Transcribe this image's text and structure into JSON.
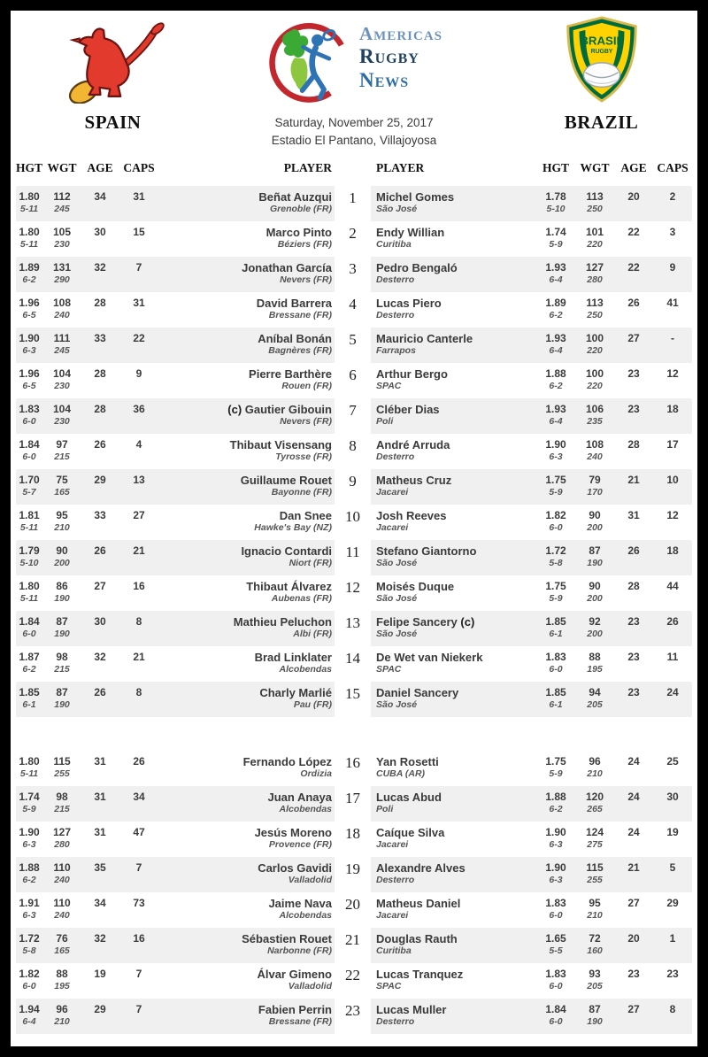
{
  "page": {
    "date": "Saturday, November 25, 2017",
    "venue": "Estadio El Pantano, Villajoyosa"
  },
  "logos": {
    "arn": {
      "word1": "Americas",
      "word2": "Rugby",
      "word3": "News"
    },
    "brazil_badge": {
      "title": "BRASIL",
      "subtitle": "RUGBY"
    },
    "spain_icon": "red-lion-with-rugby-ball",
    "arn_icon": "americas-map-rugby-kicker-red-crescent",
    "brazil_icon": "yellow-green-shield-rugby-ball"
  },
  "captain_marker": "(c)",
  "left_team": {
    "name": "SPAIN",
    "headers": {
      "hgt": "HGT",
      "wgt": "WGT",
      "age": "AGE",
      "caps": "CAPS",
      "player": "PLAYER"
    }
  },
  "right_team": {
    "name": "BRAZIL",
    "headers": {
      "player": "PLAYER",
      "hgt": "HGT",
      "wgt": "WGT",
      "age": "AGE",
      "caps": "CAPS"
    }
  },
  "players": [
    {
      "num": "1",
      "left": {
        "hgt": "1.80",
        "hgt2": "5-11",
        "wgt": "112",
        "wgt2": "245",
        "age": "34",
        "caps": "31",
        "name": "Beñat Auzqui",
        "club": "Grenoble (FR)"
      },
      "right": {
        "name": "Michel Gomes",
        "club": "São José",
        "hgt": "1.78",
        "hgt2": "5-10",
        "wgt": "113",
        "wgt2": "250",
        "age": "20",
        "caps": "2"
      }
    },
    {
      "num": "2",
      "left": {
        "hgt": "1.80",
        "hgt2": "5-11",
        "wgt": "105",
        "wgt2": "230",
        "age": "30",
        "caps": "15",
        "name": "Marco Pinto",
        "club": "Béziers (FR)"
      },
      "right": {
        "name": "Endy Willian",
        "club": "Curitiba",
        "hgt": "1.74",
        "hgt2": "5-9",
        "wgt": "101",
        "wgt2": "220",
        "age": "22",
        "caps": "3"
      }
    },
    {
      "num": "3",
      "left": {
        "hgt": "1.89",
        "hgt2": "6-2",
        "wgt": "131",
        "wgt2": "290",
        "age": "32",
        "caps": "7",
        "name": "Jonathan García",
        "club": "Nevers (FR)"
      },
      "right": {
        "name": "Pedro Bengaló",
        "club": "Desterro",
        "hgt": "1.93",
        "hgt2": "6-4",
        "wgt": "127",
        "wgt2": "280",
        "age": "22",
        "caps": "9"
      }
    },
    {
      "num": "4",
      "left": {
        "hgt": "1.96",
        "hgt2": "6-5",
        "wgt": "108",
        "wgt2": "240",
        "age": "28",
        "caps": "31",
        "name": "David Barrera",
        "club": "Bressane (FR)"
      },
      "right": {
        "name": "Lucas Piero",
        "club": "Desterro",
        "hgt": "1.89",
        "hgt2": "6-2",
        "wgt": "113",
        "wgt2": "250",
        "age": "26",
        "caps": "41"
      }
    },
    {
      "num": "5",
      "left": {
        "hgt": "1.90",
        "hgt2": "6-3",
        "wgt": "111",
        "wgt2": "245",
        "age": "33",
        "caps": "22",
        "name": "Aníbal Bonán",
        "club": "Bagnères (FR)"
      },
      "right": {
        "name": "Mauricio Canterle",
        "club": "Farrapos",
        "hgt": "1.93",
        "hgt2": "6-4",
        "wgt": "100",
        "wgt2": "220",
        "age": "27",
        "caps": "-"
      }
    },
    {
      "num": "6",
      "left": {
        "hgt": "1.96",
        "hgt2": "6-5",
        "wgt": "104",
        "wgt2": "230",
        "age": "28",
        "caps": "9",
        "name": "Pierre Barthère",
        "club": "Rouen (FR)"
      },
      "right": {
        "name": "Arthur Bergo",
        "club": "SPAC",
        "hgt": "1.88",
        "hgt2": "6-2",
        "wgt": "100",
        "wgt2": "220",
        "age": "23",
        "caps": "12"
      }
    },
    {
      "num": "7",
      "left": {
        "hgt": "1.83",
        "hgt2": "6-0",
        "wgt": "104",
        "wgt2": "230",
        "age": "28",
        "caps": "36",
        "name": "Gautier Gibouin",
        "club": "Nevers (FR)",
        "captain": true
      },
      "right": {
        "name": "Cléber Dias",
        "club": "Poli",
        "hgt": "1.93",
        "hgt2": "6-4",
        "wgt": "106",
        "wgt2": "235",
        "age": "23",
        "caps": "18"
      }
    },
    {
      "num": "8",
      "left": {
        "hgt": "1.84",
        "hgt2": "6-0",
        "wgt": "97",
        "wgt2": "215",
        "age": "26",
        "caps": "4",
        "name": "Thibaut Visensang",
        "club": "Tyrosse (FR)"
      },
      "right": {
        "name": "André Arruda",
        "club": "Desterro",
        "hgt": "1.90",
        "hgt2": "6-3",
        "wgt": "108",
        "wgt2": "240",
        "age": "28",
        "caps": "17"
      }
    },
    {
      "num": "9",
      "left": {
        "hgt": "1.70",
        "hgt2": "5-7",
        "wgt": "75",
        "wgt2": "165",
        "age": "29",
        "caps": "13",
        "name": "Guillaume Rouet",
        "club": "Bayonne (FR)"
      },
      "right": {
        "name": "Matheus Cruz",
        "club": "Jacarei",
        "hgt": "1.75",
        "hgt2": "5-9",
        "wgt": "79",
        "wgt2": "170",
        "age": "21",
        "caps": "10"
      }
    },
    {
      "num": "10",
      "left": {
        "hgt": "1.81",
        "hgt2": "5-11",
        "wgt": "95",
        "wgt2": "210",
        "age": "33",
        "caps": "27",
        "name": "Dan Snee",
        "club": "Hawke's Bay (NZ)"
      },
      "right": {
        "name": "Josh Reeves",
        "club": "Jacarei",
        "hgt": "1.82",
        "hgt2": "6-0",
        "wgt": "90",
        "wgt2": "200",
        "age": "31",
        "caps": "12"
      }
    },
    {
      "num": "11",
      "left": {
        "hgt": "1.79",
        "hgt2": "5-10",
        "wgt": "90",
        "wgt2": "200",
        "age": "26",
        "caps": "21",
        "name": "Ignacio Contardi",
        "club": "Niort (FR)"
      },
      "right": {
        "name": "Stefano Giantorno",
        "club": "São José",
        "hgt": "1.72",
        "hgt2": "5-8",
        "wgt": "87",
        "wgt2": "190",
        "age": "26",
        "caps": "18"
      }
    },
    {
      "num": "12",
      "left": {
        "hgt": "1.80",
        "hgt2": "5-11",
        "wgt": "86",
        "wgt2": "190",
        "age": "27",
        "caps": "16",
        "name": "Thibaut Álvarez",
        "club": "Aubenas (FR)"
      },
      "right": {
        "name": "Moisés Duque",
        "club": "São José",
        "hgt": "1.75",
        "hgt2": "5-9",
        "wgt": "90",
        "wgt2": "200",
        "age": "28",
        "caps": "44"
      }
    },
    {
      "num": "13",
      "left": {
        "hgt": "1.84",
        "hgt2": "6-0",
        "wgt": "87",
        "wgt2": "190",
        "age": "30",
        "caps": "8",
        "name": "Mathieu Peluchon",
        "club": "Albi (FR)"
      },
      "right": {
        "name": "Felipe Sancery",
        "club": "São José",
        "hgt": "1.85",
        "hgt2": "6-1",
        "wgt": "92",
        "wgt2": "200",
        "age": "23",
        "caps": "26",
        "captain": true
      }
    },
    {
      "num": "14",
      "left": {
        "hgt": "1.87",
        "hgt2": "6-2",
        "wgt": "98",
        "wgt2": "215",
        "age": "32",
        "caps": "21",
        "name": "Brad Linklater",
        "club": "Alcobendas"
      },
      "right": {
        "name": "De Wet van Niekerk",
        "club": "SPAC",
        "hgt": "1.83",
        "hgt2": "6-0",
        "wgt": "88",
        "wgt2": "195",
        "age": "23",
        "caps": "11"
      }
    },
    {
      "num": "15",
      "left": {
        "hgt": "1.85",
        "hgt2": "6-1",
        "wgt": "87",
        "wgt2": "190",
        "age": "26",
        "caps": "8",
        "name": "Charly Marlié",
        "club": "Pau (FR)"
      },
      "right": {
        "name": "Daniel Sancery",
        "club": "São José",
        "hgt": "1.85",
        "hgt2": "6-1",
        "wgt": "94",
        "wgt2": "205",
        "age": "23",
        "caps": "24"
      }
    },
    {
      "num": "16",
      "left": {
        "hgt": "1.80",
        "hgt2": "5-11",
        "wgt": "115",
        "wgt2": "255",
        "age": "31",
        "caps": "26",
        "name": "Fernando López",
        "club": "Ordizia"
      },
      "right": {
        "name": "Yan Rosetti",
        "club": "CUBA (AR)",
        "hgt": "1.75",
        "hgt2": "5-9",
        "wgt": "96",
        "wgt2": "210",
        "age": "24",
        "caps": "25"
      }
    },
    {
      "num": "17",
      "left": {
        "hgt": "1.74",
        "hgt2": "5-9",
        "wgt": "98",
        "wgt2": "215",
        "age": "31",
        "caps": "34",
        "name": "Juan Anaya",
        "club": "Alcobendas"
      },
      "right": {
        "name": "Lucas Abud",
        "club": "Poli",
        "hgt": "1.88",
        "hgt2": "6-2",
        "wgt": "120",
        "wgt2": "265",
        "age": "24",
        "caps": "30"
      }
    },
    {
      "num": "18",
      "left": {
        "hgt": "1.90",
        "hgt2": "6-3",
        "wgt": "127",
        "wgt2": "280",
        "age": "31",
        "caps": "47",
        "name": "Jesús Moreno",
        "club": "Provence (FR)"
      },
      "right": {
        "name": "Caíque Silva",
        "club": "Jacarei",
        "hgt": "1.90",
        "hgt2": "6-3",
        "wgt": "124",
        "wgt2": "275",
        "age": "24",
        "caps": "19"
      }
    },
    {
      "num": "19",
      "left": {
        "hgt": "1.88",
        "hgt2": "6-2",
        "wgt": "110",
        "wgt2": "240",
        "age": "35",
        "caps": "7",
        "name": "Carlos Gavidi",
        "club": "Valladolid"
      },
      "right": {
        "name": "Alexandre Alves",
        "club": "Desterro",
        "hgt": "1.90",
        "hgt2": "6-3",
        "wgt": "115",
        "wgt2": "255",
        "age": "21",
        "caps": "5"
      }
    },
    {
      "num": "20",
      "left": {
        "hgt": "1.91",
        "hgt2": "6-3",
        "wgt": "110",
        "wgt2": "240",
        "age": "34",
        "caps": "73",
        "name": "Jaime Nava",
        "club": "Alcobendas"
      },
      "right": {
        "name": "Matheus Daniel",
        "club": "Jacarei",
        "hgt": "1.83",
        "hgt2": "6-0",
        "wgt": "95",
        "wgt2": "210",
        "age": "27",
        "caps": "29"
      }
    },
    {
      "num": "21",
      "left": {
        "hgt": "1.72",
        "hgt2": "5-8",
        "wgt": "76",
        "wgt2": "165",
        "age": "32",
        "caps": "16",
        "name": "Sébastien Rouet",
        "club": "Narbonne (FR)"
      },
      "right": {
        "name": "Douglas Rauth",
        "club": "Curitiba",
        "hgt": "1.65",
        "hgt2": "5-5",
        "wgt": "72",
        "wgt2": "160",
        "age": "20",
        "caps": "1"
      }
    },
    {
      "num": "22",
      "left": {
        "hgt": "1.82",
        "hgt2": "6-0",
        "wgt": "88",
        "wgt2": "195",
        "age": "19",
        "caps": "7",
        "name": "Álvar Gimeno",
        "club": "Valladolid"
      },
      "right": {
        "name": "Lucas Tranquez",
        "club": "SPAC",
        "hgt": "1.83",
        "hgt2": "6-0",
        "wgt": "93",
        "wgt2": "205",
        "age": "23",
        "caps": "23"
      }
    },
    {
      "num": "23",
      "left": {
        "hgt": "1.94",
        "hgt2": "6-4",
        "wgt": "96",
        "wgt2": "210",
        "age": "29",
        "caps": "7",
        "name": "Fabien Perrin",
        "club": "Bressane (FR)"
      },
      "right": {
        "name": "Lucas Muller",
        "club": "Desterro",
        "hgt": "1.84",
        "hgt2": "6-0",
        "wgt": "87",
        "wgt2": "190",
        "age": "27",
        "caps": "8"
      }
    }
  ]
}
